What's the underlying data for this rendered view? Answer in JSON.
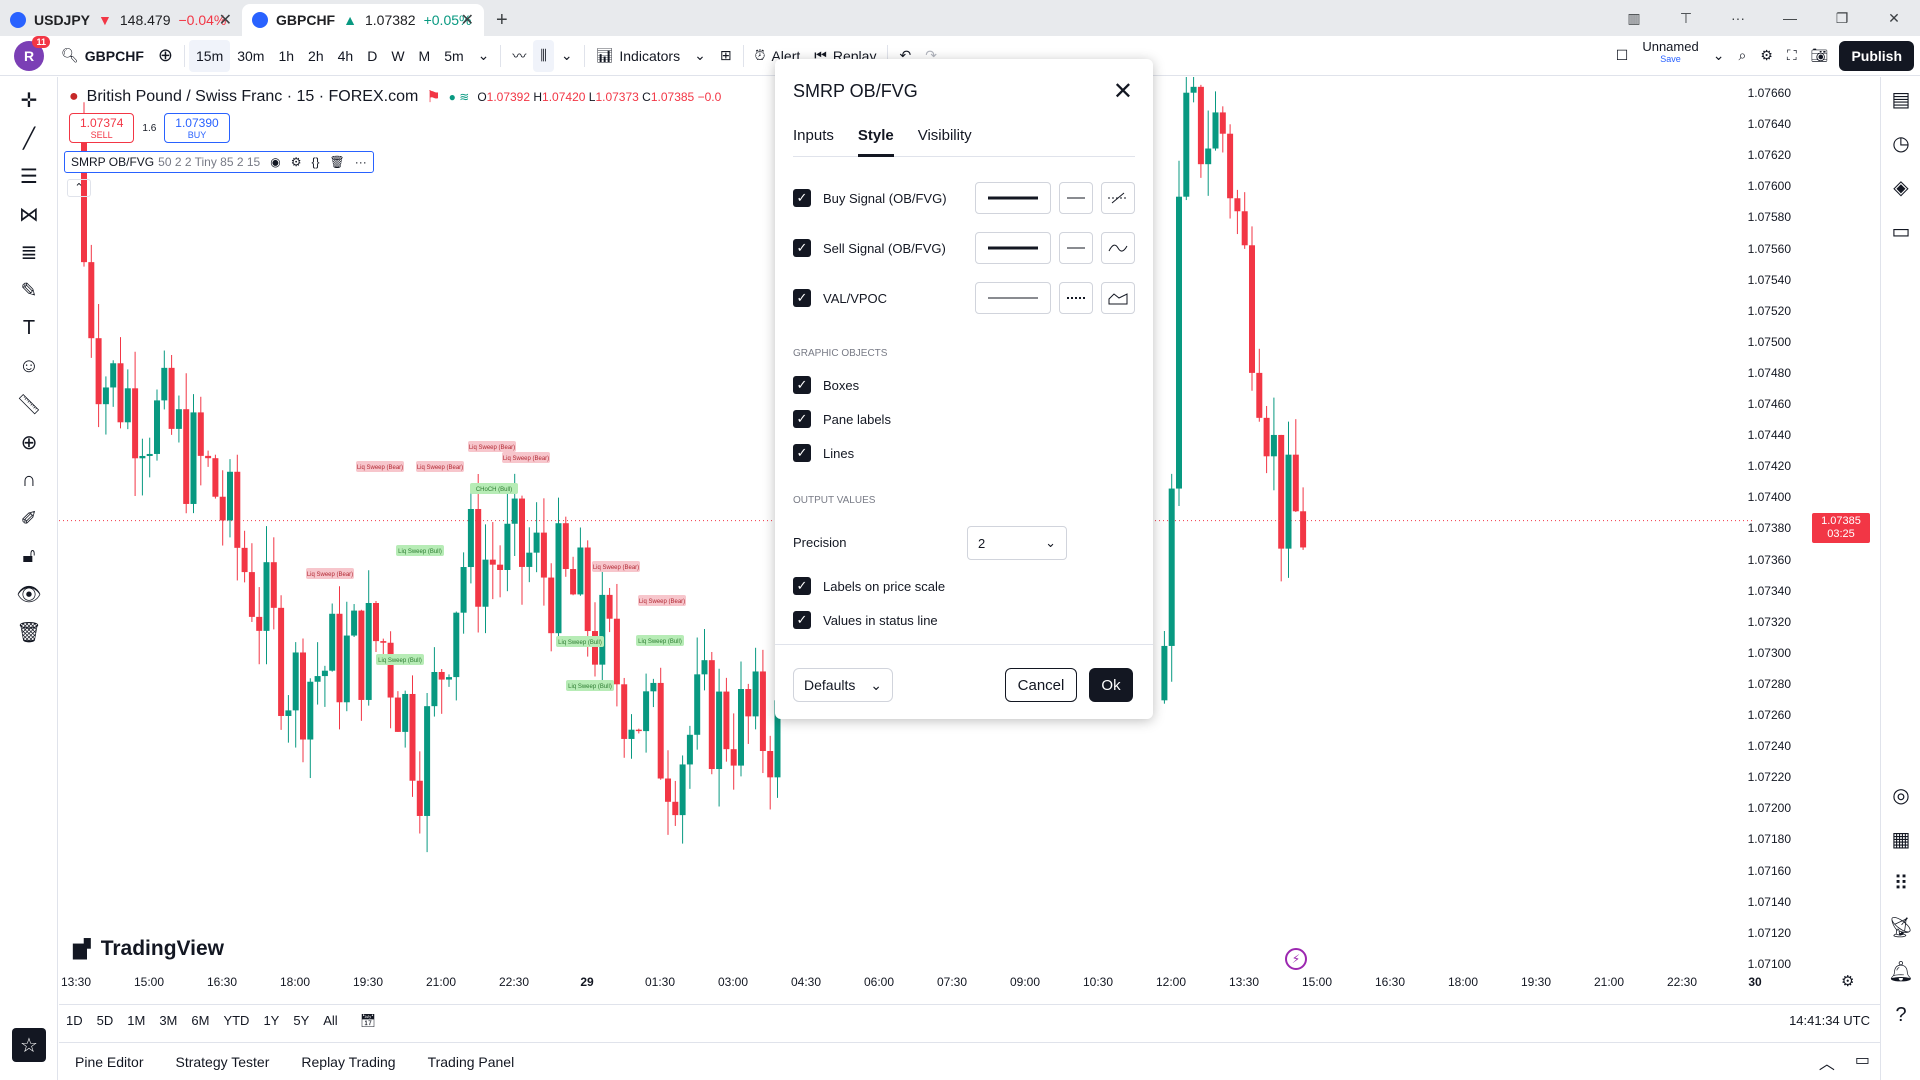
{
  "browser": {
    "tabs": [
      {
        "symbol": "USDJPY",
        "arrow": "▼",
        "price": "148.479",
        "change": "−0.04%",
        "dir": "neg"
      },
      {
        "symbol": "GBPCHF",
        "arrow": "▲",
        "price": "1.07382",
        "change": "+0.05%",
        "dir": "pos"
      }
    ]
  },
  "toolbar": {
    "avatar_letter": "R",
    "notification_count": "11",
    "symbol": "GBPCHF",
    "intervals": [
      "15m",
      "30m",
      "1h",
      "2h",
      "4h",
      "D",
      "W",
      "M",
      "5m"
    ],
    "selected_interval": "15m",
    "indicators_label": "Indicators",
    "alert_label": "Alert",
    "replay_label": "Replay",
    "layout_name": "Unnamed",
    "layout_sub": "Save",
    "publish_label": "Publish"
  },
  "legend": {
    "title": "British Pound / Swiss Franc · 15 · FOREX.com",
    "o": "1.07392",
    "h": "1.07420",
    "l": "1.07373",
    "c": "1.07385",
    "chg": "−0.0",
    "sell_price": "1.07374",
    "sell_label": "SELL",
    "buy_price": "1.07390",
    "buy_label": "BUY",
    "spread": "1.6",
    "indicator_name": "SMRP OB/FVG",
    "indicator_params": "50 2 2 Tiny 85 2 15"
  },
  "price_axis": {
    "ticks": [
      "1.07660",
      "1.07640",
      "1.07620",
      "1.07600",
      "1.07580",
      "1.07560",
      "1.07540",
      "1.07520",
      "1.07500",
      "1.07480",
      "1.07460",
      "1.07440",
      "1.07420",
      "1.07400",
      "1.07380",
      "1.07360",
      "1.07340",
      "1.07320",
      "1.07300",
      "1.07280",
      "1.07260",
      "1.07240",
      "1.07220",
      "1.07200",
      "1.07180",
      "1.07160",
      "1.07140",
      "1.07120",
      "1.07100"
    ],
    "current_price": "1.07385",
    "countdown": "03:25"
  },
  "time_axis": {
    "ticks": [
      "13:30",
      "15:00",
      "16:30",
      "18:00",
      "19:30",
      "21:00",
      "22:30",
      "29",
      "01:30",
      "03:00",
      "04:30",
      "06:00",
      "07:30",
      "09:00",
      "10:30",
      "12:00",
      "13:30",
      "15:00",
      "16:30",
      "18:00",
      "19:30",
      "21:00",
      "22:30",
      "30"
    ]
  },
  "chart_data": {
    "type": "candlestick",
    "symbol": "GBPCHF",
    "interval": "15",
    "ylim": [
      1.0709,
      1.0767
    ],
    "annotations": {
      "bear": "Liq Sweep (Bear)",
      "bull": "Liq Sweep (Bull)",
      "choch": "CHoCH (Bull)"
    }
  },
  "brand": "TradingView",
  "ranges": [
    "1D",
    "5D",
    "1M",
    "3M",
    "6M",
    "YTD",
    "1Y",
    "5Y",
    "All"
  ],
  "clock": "14:41:34 UTC",
  "bottom_tabs": [
    "Pine Editor",
    "Strategy Tester",
    "Replay Trading",
    "Trading Panel"
  ],
  "dialog": {
    "title": "SMRP OB/FVG",
    "tabs": [
      "Inputs",
      "Style",
      "Visibility"
    ],
    "active_tab": "Style",
    "plots": [
      "Buy Signal (OB/FVG)",
      "Sell Signal (OB/FVG)",
      "VAL/VPOC"
    ],
    "graphic_objects_header": "GRAPHIC OBJECTS",
    "graphic_objects": [
      "Boxes",
      "Pane labels",
      "Lines"
    ],
    "output_values_header": "OUTPUT VALUES",
    "precision_label": "Precision",
    "precision_value": "2",
    "output_options": [
      "Labels on price scale",
      "Values in status line"
    ],
    "defaults_label": "Defaults",
    "cancel_label": "Cancel",
    "ok_label": "Ok"
  }
}
